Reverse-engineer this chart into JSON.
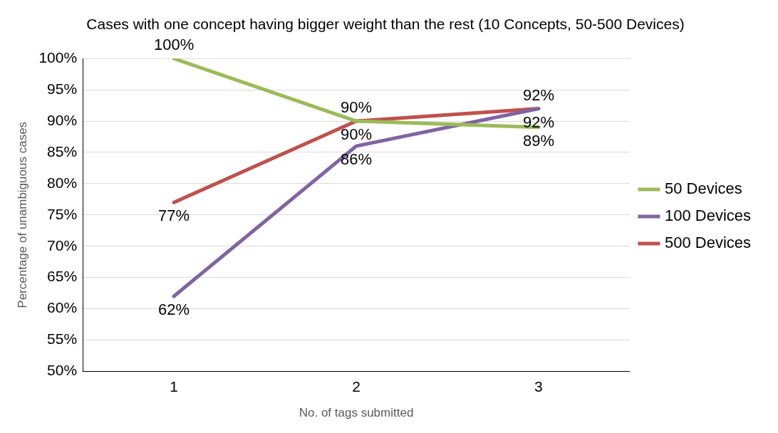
{
  "chart_data": {
    "type": "line",
    "title": "Cases with one concept having bigger weight than the rest (10 Concepts, 50-500 Devices)",
    "xlabel": "No. of tags submitted",
    "ylabel": "Percentage of unambiguous cases",
    "categories": [
      "1",
      "2",
      "3"
    ],
    "series": [
      {
        "name": "50 Devices",
        "color": "#9bbb59",
        "values": [
          100,
          90,
          89
        ],
        "value_labels": [
          "100%",
          "90%",
          "89%"
        ]
      },
      {
        "name": "100 Devices",
        "color": "#8064a2",
        "values": [
          62,
          86,
          92
        ],
        "value_labels": [
          "62%",
          "86%",
          "92%"
        ]
      },
      {
        "name": "500 Devices",
        "color": "#c0504d",
        "values": [
          77,
          90,
          92
        ],
        "value_labels": [
          "77%",
          "90%",
          "92%"
        ]
      }
    ],
    "ylim": [
      50,
      100
    ],
    "yticks": [
      {
        "value": 50,
        "label": "50%"
      },
      {
        "value": 55,
        "label": "55%"
      },
      {
        "value": 60,
        "label": "60%"
      },
      {
        "value": 65,
        "label": "65%"
      },
      {
        "value": 70,
        "label": "70%"
      },
      {
        "value": 75,
        "label": "75%"
      },
      {
        "value": 80,
        "label": "80%"
      },
      {
        "value": 85,
        "label": "85%"
      },
      {
        "value": 90,
        "label": "90%"
      },
      {
        "value": 95,
        "label": "95%"
      },
      {
        "value": 100,
        "label": "100%"
      }
    ],
    "grid": "y",
    "legend": "right",
    "marker": "none",
    "line_style": "solid"
  }
}
